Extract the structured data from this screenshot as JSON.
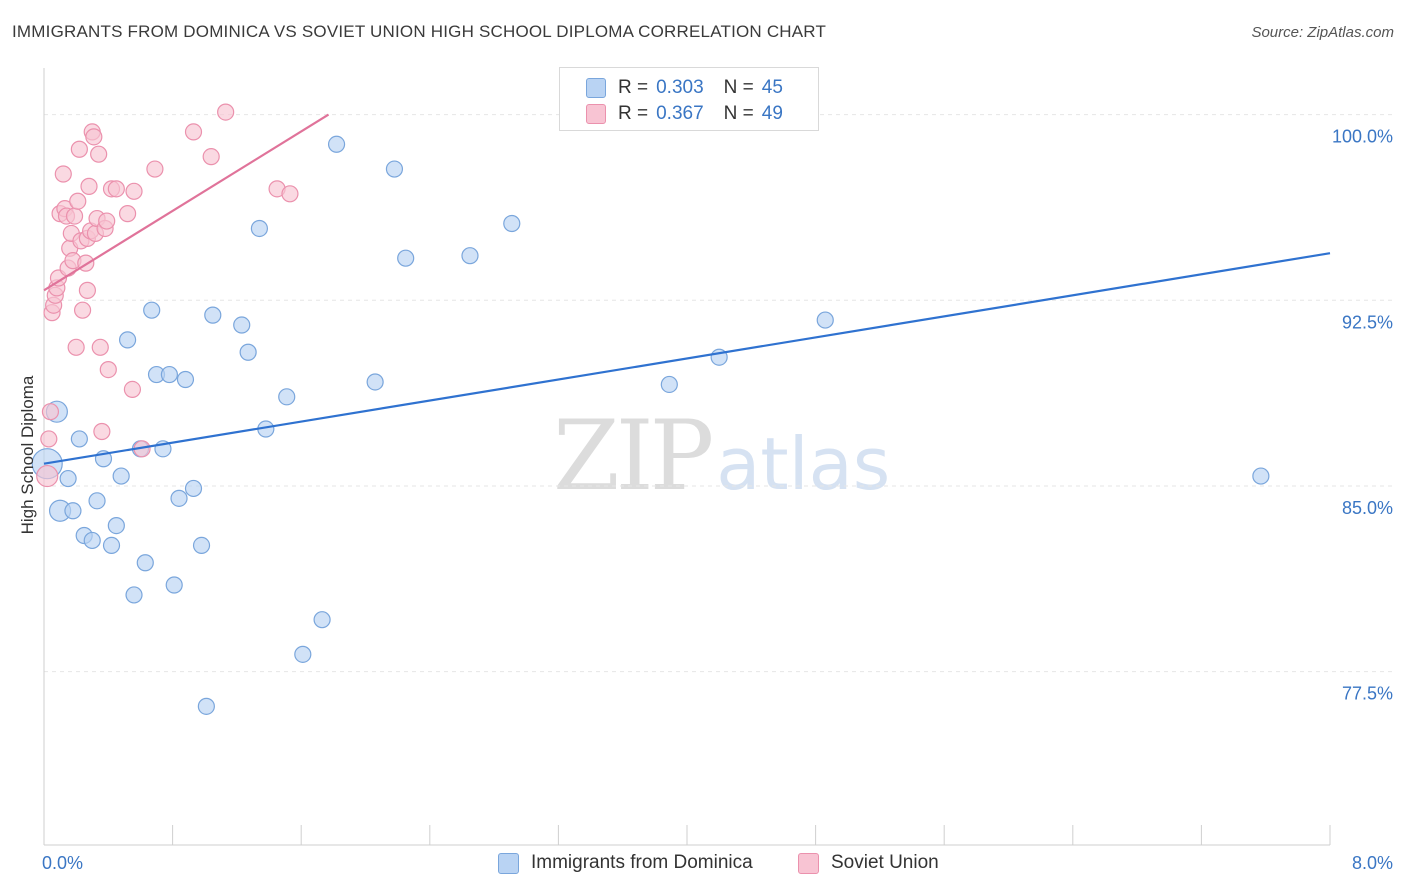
{
  "header": {
    "title": "IMMIGRANTS FROM DOMINICA VS SOVIET UNION HIGH SCHOOL DIPLOMA CORRELATION CHART",
    "source": "Source: ZipAtlas.com"
  },
  "watermark": {
    "zip": "ZIP",
    "atlas": "atlas"
  },
  "legend": {
    "r_label": "R =",
    "n_label": "N =",
    "entries": [
      {
        "r": "0.303",
        "n": "45"
      },
      {
        "r": "0.367",
        "n": "49"
      }
    ]
  },
  "colors": {
    "blue_fill": "#b9d3f3",
    "blue_stroke": "#7aa6dc",
    "blue_line": "#2f72d0",
    "pink_fill": "#f8c4d3",
    "pink_stroke": "#eb91ad",
    "pink_line": "#e0739a",
    "tick_label": "#3a76c4",
    "grid": "#e6e6e6"
  },
  "chart_data": {
    "type": "scatter",
    "title": "IMMIGRANTS FROM DOMINICA VS SOVIET UNION HIGH SCHOOL DIPLOMA CORRELATION CHART",
    "xlabel": "",
    "ylabel": "High School Diploma",
    "xlim": [
      0,
      8
    ],
    "ylim": [
      70.5,
      101.8
    ],
    "x_ticks": [
      0,
      0.8,
      1.6,
      2.4,
      3.2,
      4.0,
      4.8,
      5.6,
      6.4,
      7.2,
      8.0
    ],
    "x_tick_labels": [
      {
        "value": 0,
        "label": "0.0%"
      },
      {
        "value": 8,
        "label": "8.0%"
      }
    ],
    "y_ticks": [
      {
        "value": 100,
        "label": "100.0%"
      },
      {
        "value": 92.5,
        "label": "92.5%"
      },
      {
        "value": 85,
        "label": "85.0%"
      },
      {
        "value": 77.5,
        "label": "77.5%"
      }
    ],
    "grid": true,
    "legend_position": "top-center",
    "series": [
      {
        "name": "Immigrants from Dominica",
        "color": "#b9d3f3",
        "trend": {
          "x": [
            0,
            8
          ],
          "y": [
            85.9,
            94.4
          ]
        },
        "points": [
          {
            "x": 0.02,
            "y": 85.9,
            "s": "xl"
          },
          {
            "x": 0.08,
            "y": 88.0,
            "s": "l"
          },
          {
            "x": 0.1,
            "y": 84.0,
            "s": "l"
          },
          {
            "x": 0.15,
            "y": 85.3,
            "s": "m"
          },
          {
            "x": 0.18,
            "y": 84.0,
            "s": "m"
          },
          {
            "x": 0.22,
            "y": 86.9,
            "s": "m"
          },
          {
            "x": 0.25,
            "y": 83.0,
            "s": "m"
          },
          {
            "x": 0.3,
            "y": 82.8,
            "s": "m"
          },
          {
            "x": 0.33,
            "y": 84.4,
            "s": "m"
          },
          {
            "x": 0.37,
            "y": 86.1,
            "s": "m"
          },
          {
            "x": 0.42,
            "y": 82.6,
            "s": "m"
          },
          {
            "x": 0.45,
            "y": 83.4,
            "s": "m"
          },
          {
            "x": 0.48,
            "y": 85.4,
            "s": "m"
          },
          {
            "x": 0.52,
            "y": 90.9,
            "s": "m"
          },
          {
            "x": 0.56,
            "y": 80.6,
            "s": "m"
          },
          {
            "x": 0.6,
            "y": 86.5,
            "s": "m"
          },
          {
            "x": 0.63,
            "y": 81.9,
            "s": "m"
          },
          {
            "x": 0.67,
            "y": 92.1,
            "s": "m"
          },
          {
            "x": 0.7,
            "y": 89.5,
            "s": "m"
          },
          {
            "x": 0.74,
            "y": 86.5,
            "s": "m"
          },
          {
            "x": 0.78,
            "y": 89.5,
            "s": "m"
          },
          {
            "x": 0.81,
            "y": 81.0,
            "s": "m"
          },
          {
            "x": 0.84,
            "y": 84.5,
            "s": "m"
          },
          {
            "x": 0.88,
            "y": 89.3,
            "s": "m"
          },
          {
            "x": 0.93,
            "y": 84.9,
            "s": "m"
          },
          {
            "x": 0.98,
            "y": 82.6,
            "s": "m"
          },
          {
            "x": 1.01,
            "y": 76.1,
            "s": "m"
          },
          {
            "x": 1.05,
            "y": 91.9,
            "s": "m"
          },
          {
            "x": 1.23,
            "y": 91.5,
            "s": "m"
          },
          {
            "x": 1.27,
            "y": 90.4,
            "s": "m"
          },
          {
            "x": 1.34,
            "y": 95.4,
            "s": "m"
          },
          {
            "x": 1.38,
            "y": 87.3,
            "s": "m"
          },
          {
            "x": 1.51,
            "y": 88.6,
            "s": "m"
          },
          {
            "x": 1.61,
            "y": 78.2,
            "s": "m"
          },
          {
            "x": 1.73,
            "y": 79.6,
            "s": "m"
          },
          {
            "x": 1.82,
            "y": 98.8,
            "s": "m"
          },
          {
            "x": 2.06,
            "y": 89.2,
            "s": "m"
          },
          {
            "x": 2.18,
            "y": 97.8,
            "s": "m"
          },
          {
            "x": 2.25,
            "y": 94.2,
            "s": "m"
          },
          {
            "x": 2.65,
            "y": 94.3,
            "s": "m"
          },
          {
            "x": 2.91,
            "y": 95.6,
            "s": "m"
          },
          {
            "x": 3.89,
            "y": 89.1,
            "s": "m"
          },
          {
            "x": 4.2,
            "y": 90.2,
            "s": "m"
          },
          {
            "x": 4.86,
            "y": 91.7,
            "s": "m"
          },
          {
            "x": 7.57,
            "y": 85.4,
            "s": "m"
          }
        ]
      },
      {
        "name": "Soviet Union",
        "color": "#f8c4d3",
        "trend": {
          "x": [
            0,
            1.77
          ],
          "y": [
            92.9,
            100.0
          ]
        },
        "points": [
          {
            "x": 0.02,
            "y": 85.4,
            "s": "l"
          },
          {
            "x": 0.03,
            "y": 86.9,
            "s": "m"
          },
          {
            "x": 0.04,
            "y": 88.0,
            "s": "m"
          },
          {
            "x": 0.05,
            "y": 92.0,
            "s": "m"
          },
          {
            "x": 0.06,
            "y": 92.3,
            "s": "m"
          },
          {
            "x": 0.07,
            "y": 92.7,
            "s": "m"
          },
          {
            "x": 0.08,
            "y": 93.0,
            "s": "m"
          },
          {
            "x": 0.09,
            "y": 93.4,
            "s": "m"
          },
          {
            "x": 0.1,
            "y": 96.0,
            "s": "m"
          },
          {
            "x": 0.12,
            "y": 97.6,
            "s": "m"
          },
          {
            "x": 0.13,
            "y": 96.2,
            "s": "m"
          },
          {
            "x": 0.14,
            "y": 95.9,
            "s": "m"
          },
          {
            "x": 0.15,
            "y": 93.8,
            "s": "m"
          },
          {
            "x": 0.16,
            "y": 94.6,
            "s": "m"
          },
          {
            "x": 0.17,
            "y": 95.2,
            "s": "m"
          },
          {
            "x": 0.18,
            "y": 94.1,
            "s": "m"
          },
          {
            "x": 0.19,
            "y": 95.9,
            "s": "m"
          },
          {
            "x": 0.2,
            "y": 90.6,
            "s": "m"
          },
          {
            "x": 0.21,
            "y": 96.5,
            "s": "m"
          },
          {
            "x": 0.22,
            "y": 98.6,
            "s": "m"
          },
          {
            "x": 0.23,
            "y": 94.9,
            "s": "m"
          },
          {
            "x": 0.24,
            "y": 92.1,
            "s": "m"
          },
          {
            "x": 0.26,
            "y": 94.0,
            "s": "m"
          },
          {
            "x": 0.27,
            "y": 95.0,
            "s": "m"
          },
          {
            "x": 0.28,
            "y": 97.1,
            "s": "m"
          },
          {
            "x": 0.29,
            "y": 95.3,
            "s": "m"
          },
          {
            "x": 0.3,
            "y": 99.3,
            "s": "m"
          },
          {
            "x": 0.31,
            "y": 99.1,
            "s": "m"
          },
          {
            "x": 0.32,
            "y": 95.2,
            "s": "m"
          },
          {
            "x": 0.33,
            "y": 95.8,
            "s": "m"
          },
          {
            "x": 0.34,
            "y": 98.4,
            "s": "m"
          },
          {
            "x": 0.35,
            "y": 90.6,
            "s": "m"
          },
          {
            "x": 0.36,
            "y": 87.2,
            "s": "m"
          },
          {
            "x": 0.38,
            "y": 95.4,
            "s": "m"
          },
          {
            "x": 0.39,
            "y": 95.7,
            "s": "m"
          },
          {
            "x": 0.4,
            "y": 89.7,
            "s": "m"
          },
          {
            "x": 0.42,
            "y": 97.0,
            "s": "m"
          },
          {
            "x": 0.45,
            "y": 97.0,
            "s": "m"
          },
          {
            "x": 0.52,
            "y": 96.0,
            "s": "m"
          },
          {
            "x": 0.55,
            "y": 88.9,
            "s": "m"
          },
          {
            "x": 0.56,
            "y": 96.9,
            "s": "m"
          },
          {
            "x": 0.61,
            "y": 86.5,
            "s": "m"
          },
          {
            "x": 0.69,
            "y": 97.8,
            "s": "m"
          },
          {
            "x": 0.93,
            "y": 99.3,
            "s": "m"
          },
          {
            "x": 1.04,
            "y": 98.3,
            "s": "m"
          },
          {
            "x": 1.13,
            "y": 100.1,
            "s": "m"
          },
          {
            "x": 1.45,
            "y": 97.0,
            "s": "m"
          },
          {
            "x": 1.53,
            "y": 96.8,
            "s": "m"
          },
          {
            "x": 0.27,
            "y": 92.9,
            "s": "m"
          }
        ]
      }
    ]
  }
}
